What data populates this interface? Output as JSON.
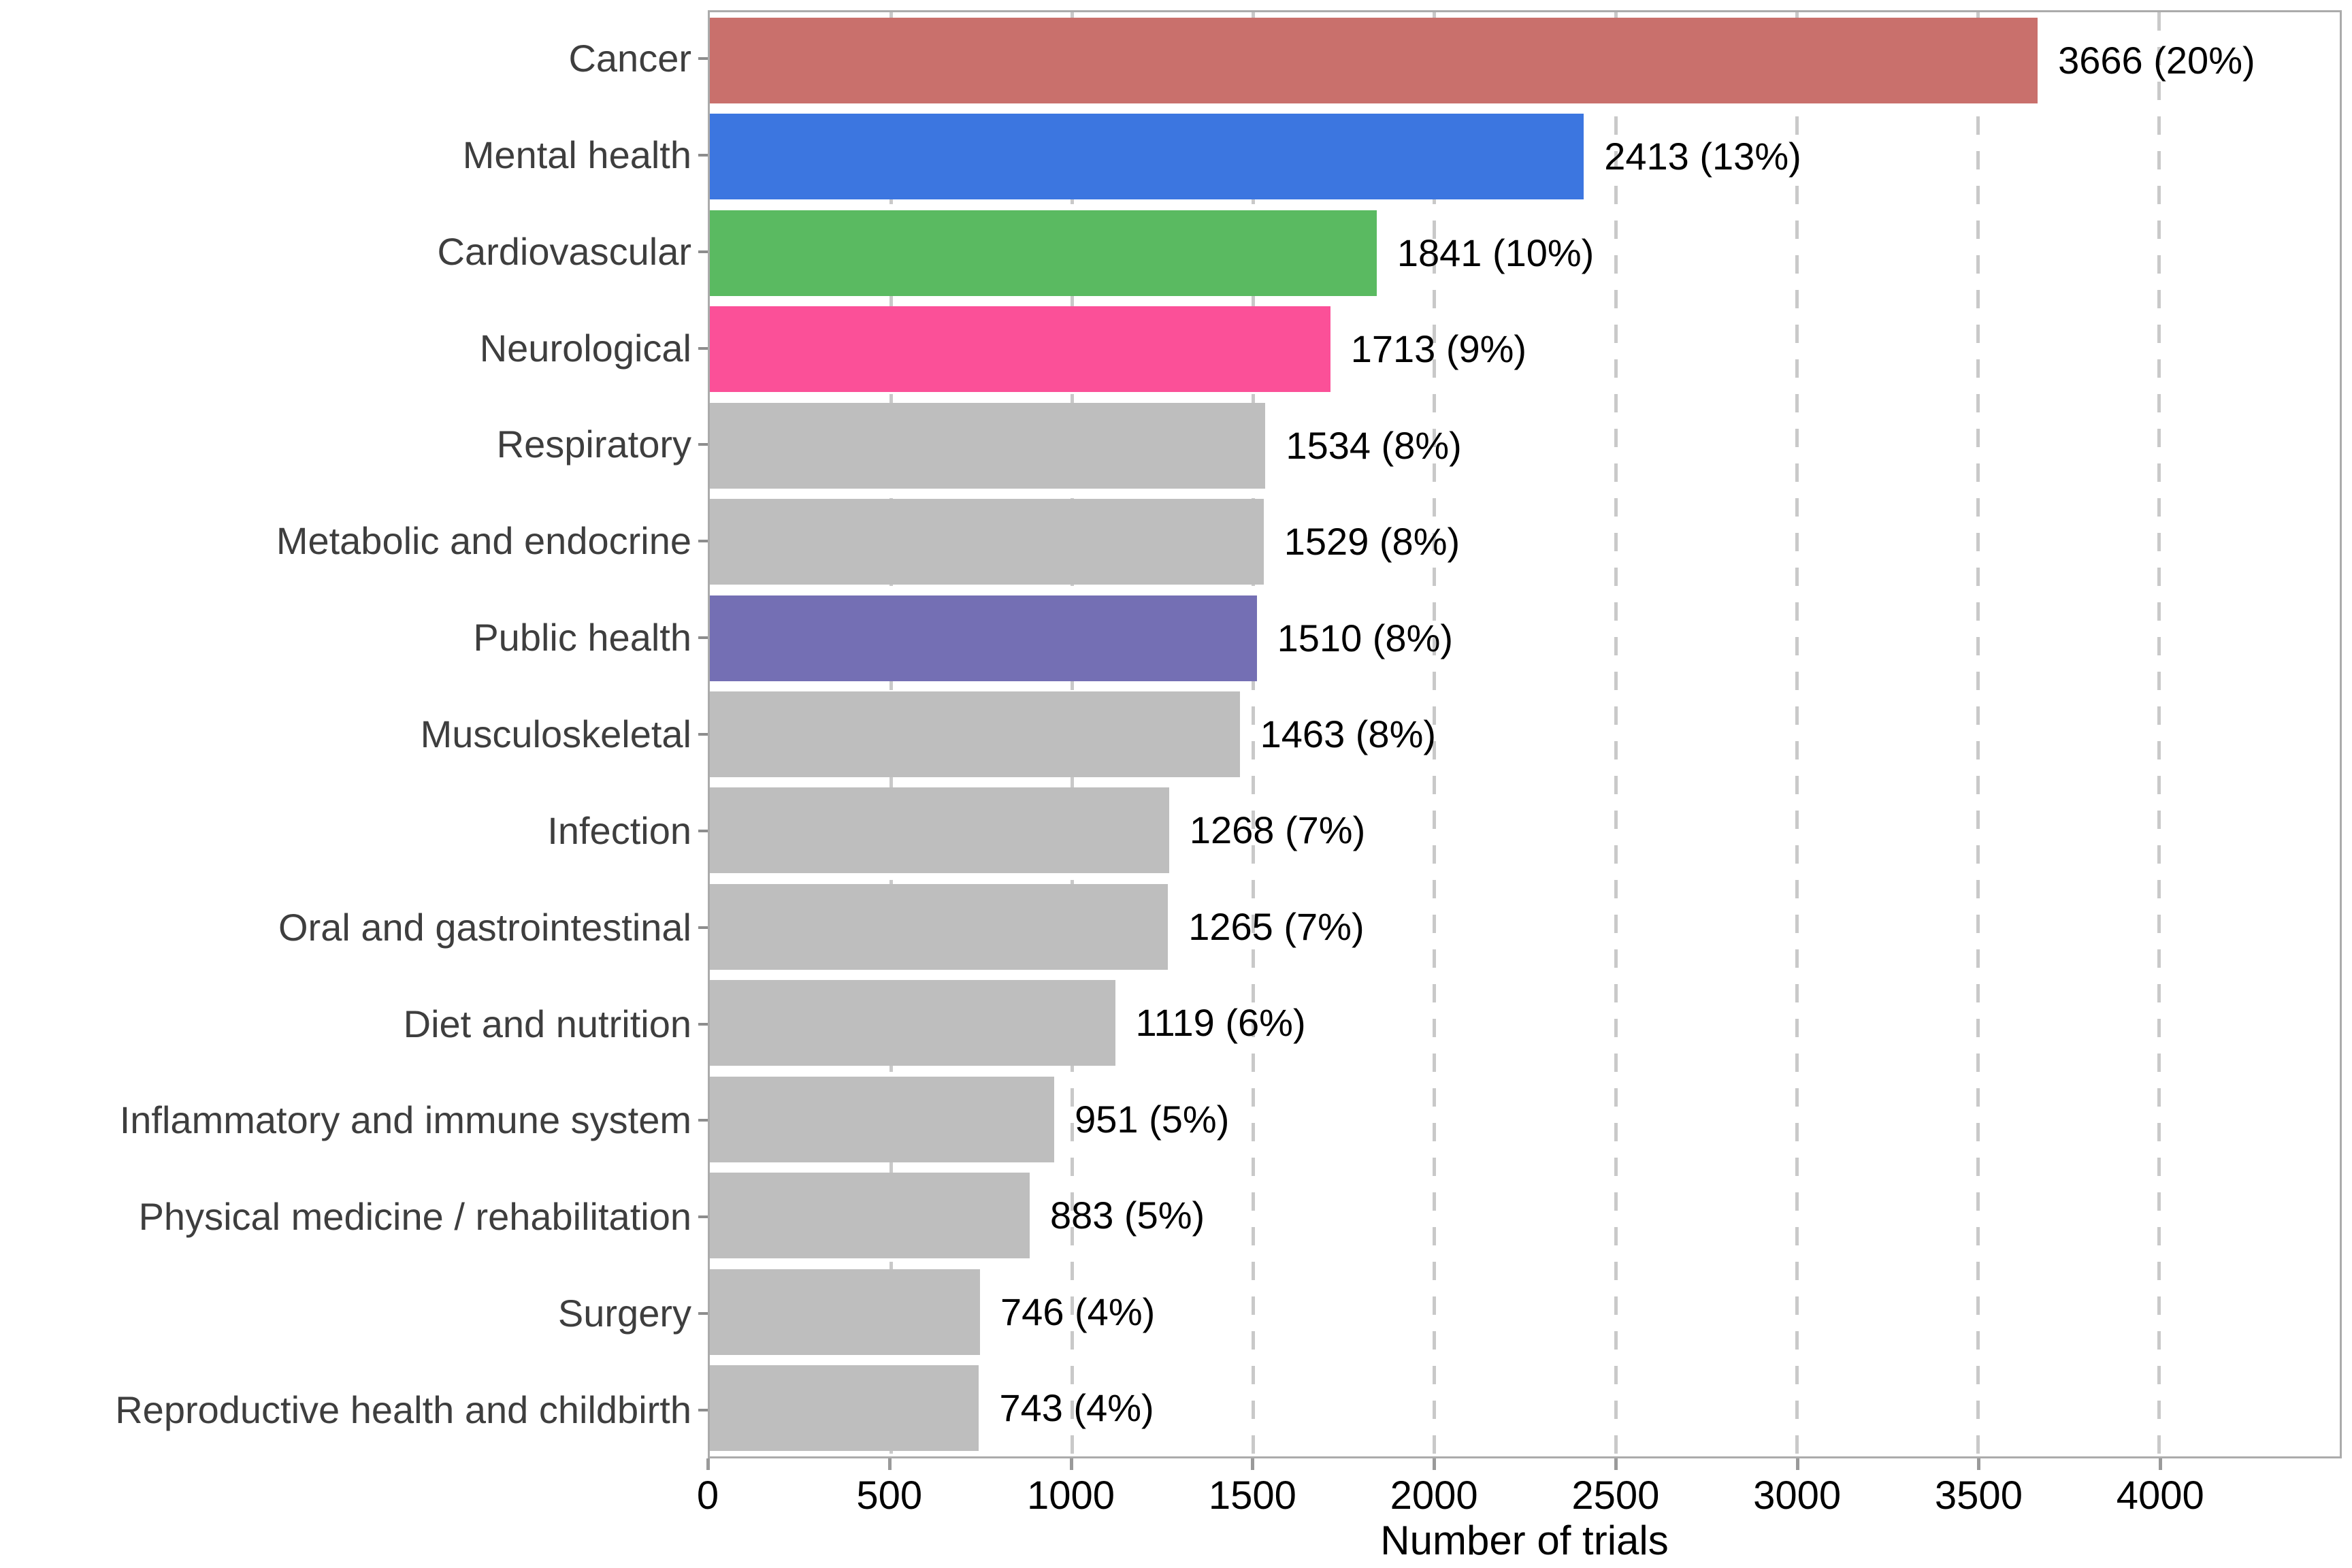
{
  "chart_data": {
    "type": "bar",
    "orientation": "horizontal",
    "title": "",
    "xlabel": "Number of trials",
    "ylabel": "",
    "xlim": [
      0,
      4500
    ],
    "xticks": [
      0,
      500,
      1000,
      1500,
      2000,
      2500,
      3000,
      3500,
      4000
    ],
    "grid": "vertical dashed gridlines, light gray, panel border on all sides",
    "legend": "none",
    "colors": {
      "default_bar": "#bebebe",
      "cancer": "#c9706c",
      "mental_health": "#3c76e0",
      "cardiovascular": "#5aba61",
      "neurological": "#fb5098",
      "public_health": "#746fb4",
      "gridline": "#c9c9c9",
      "panel_border": "#ababab",
      "category_text": "#3e3e3e",
      "value_text": "#000000"
    },
    "categories": [
      "Cancer",
      "Mental health",
      "Cardiovascular",
      "Neurological",
      "Respiratory",
      "Metabolic and endocrine",
      "Public health",
      "Musculoskeletal",
      "Infection",
      "Oral and gastrointestinal",
      "Diet and nutrition",
      "Inflammatory and immune system",
      "Physical medicine / rehabilitation",
      "Surgery",
      "Reproductive health and childbirth"
    ],
    "values": [
      3666,
      2413,
      1841,
      1713,
      1534,
      1529,
      1510,
      1463,
      1268,
      1265,
      1119,
      951,
      883,
      746,
      743
    ],
    "percents": [
      20,
      13,
      10,
      9,
      8,
      8,
      8,
      8,
      7,
      7,
      6,
      5,
      5,
      4,
      4
    ],
    "bars": [
      {
        "category": "Cancer",
        "value": 3666,
        "percent": 20,
        "label": "3666 (20%)",
        "color": "#c9706c"
      },
      {
        "category": "Mental health",
        "value": 2413,
        "percent": 13,
        "label": "2413 (13%)",
        "color": "#3c76e0"
      },
      {
        "category": "Cardiovascular",
        "value": 1841,
        "percent": 10,
        "label": "1841 (10%)",
        "color": "#5aba61"
      },
      {
        "category": "Neurological",
        "value": 1713,
        "percent": 9,
        "label": "1713 (9%)",
        "color": "#fb5098"
      },
      {
        "category": "Respiratory",
        "value": 1534,
        "percent": 8,
        "label": "1534 (8%)",
        "color": "#bebebe"
      },
      {
        "category": "Metabolic and endocrine",
        "value": 1529,
        "percent": 8,
        "label": "1529 (8%)",
        "color": "#bebebe"
      },
      {
        "category": "Public health",
        "value": 1510,
        "percent": 8,
        "label": "1510 (8%)",
        "color": "#746fb4"
      },
      {
        "category": "Musculoskeletal",
        "value": 1463,
        "percent": 8,
        "label": "1463 (8%)",
        "color": "#bebebe"
      },
      {
        "category": "Infection",
        "value": 1268,
        "percent": 7,
        "label": "1268 (7%)",
        "color": "#bebebe"
      },
      {
        "category": "Oral and gastrointestinal",
        "value": 1265,
        "percent": 7,
        "label": "1265 (7%)",
        "color": "#bebebe"
      },
      {
        "category": "Diet and nutrition",
        "value": 1119,
        "percent": 6,
        "label": "1119 (6%)",
        "color": "#bebebe"
      },
      {
        "category": "Inflammatory and immune system",
        "value": 951,
        "percent": 5,
        "label": "951 (5%)",
        "color": "#bebebe"
      },
      {
        "category": "Physical medicine / rehabilitation",
        "value": 883,
        "percent": 5,
        "label": "883 (5%)",
        "color": "#bebebe"
      },
      {
        "category": "Surgery",
        "value": 746,
        "percent": 4,
        "label": "746 (4%)",
        "color": "#bebebe"
      },
      {
        "category": "Reproductive health and childbirth",
        "value": 743,
        "percent": 4,
        "label": "743 (4%)",
        "color": "#bebebe"
      }
    ]
  }
}
